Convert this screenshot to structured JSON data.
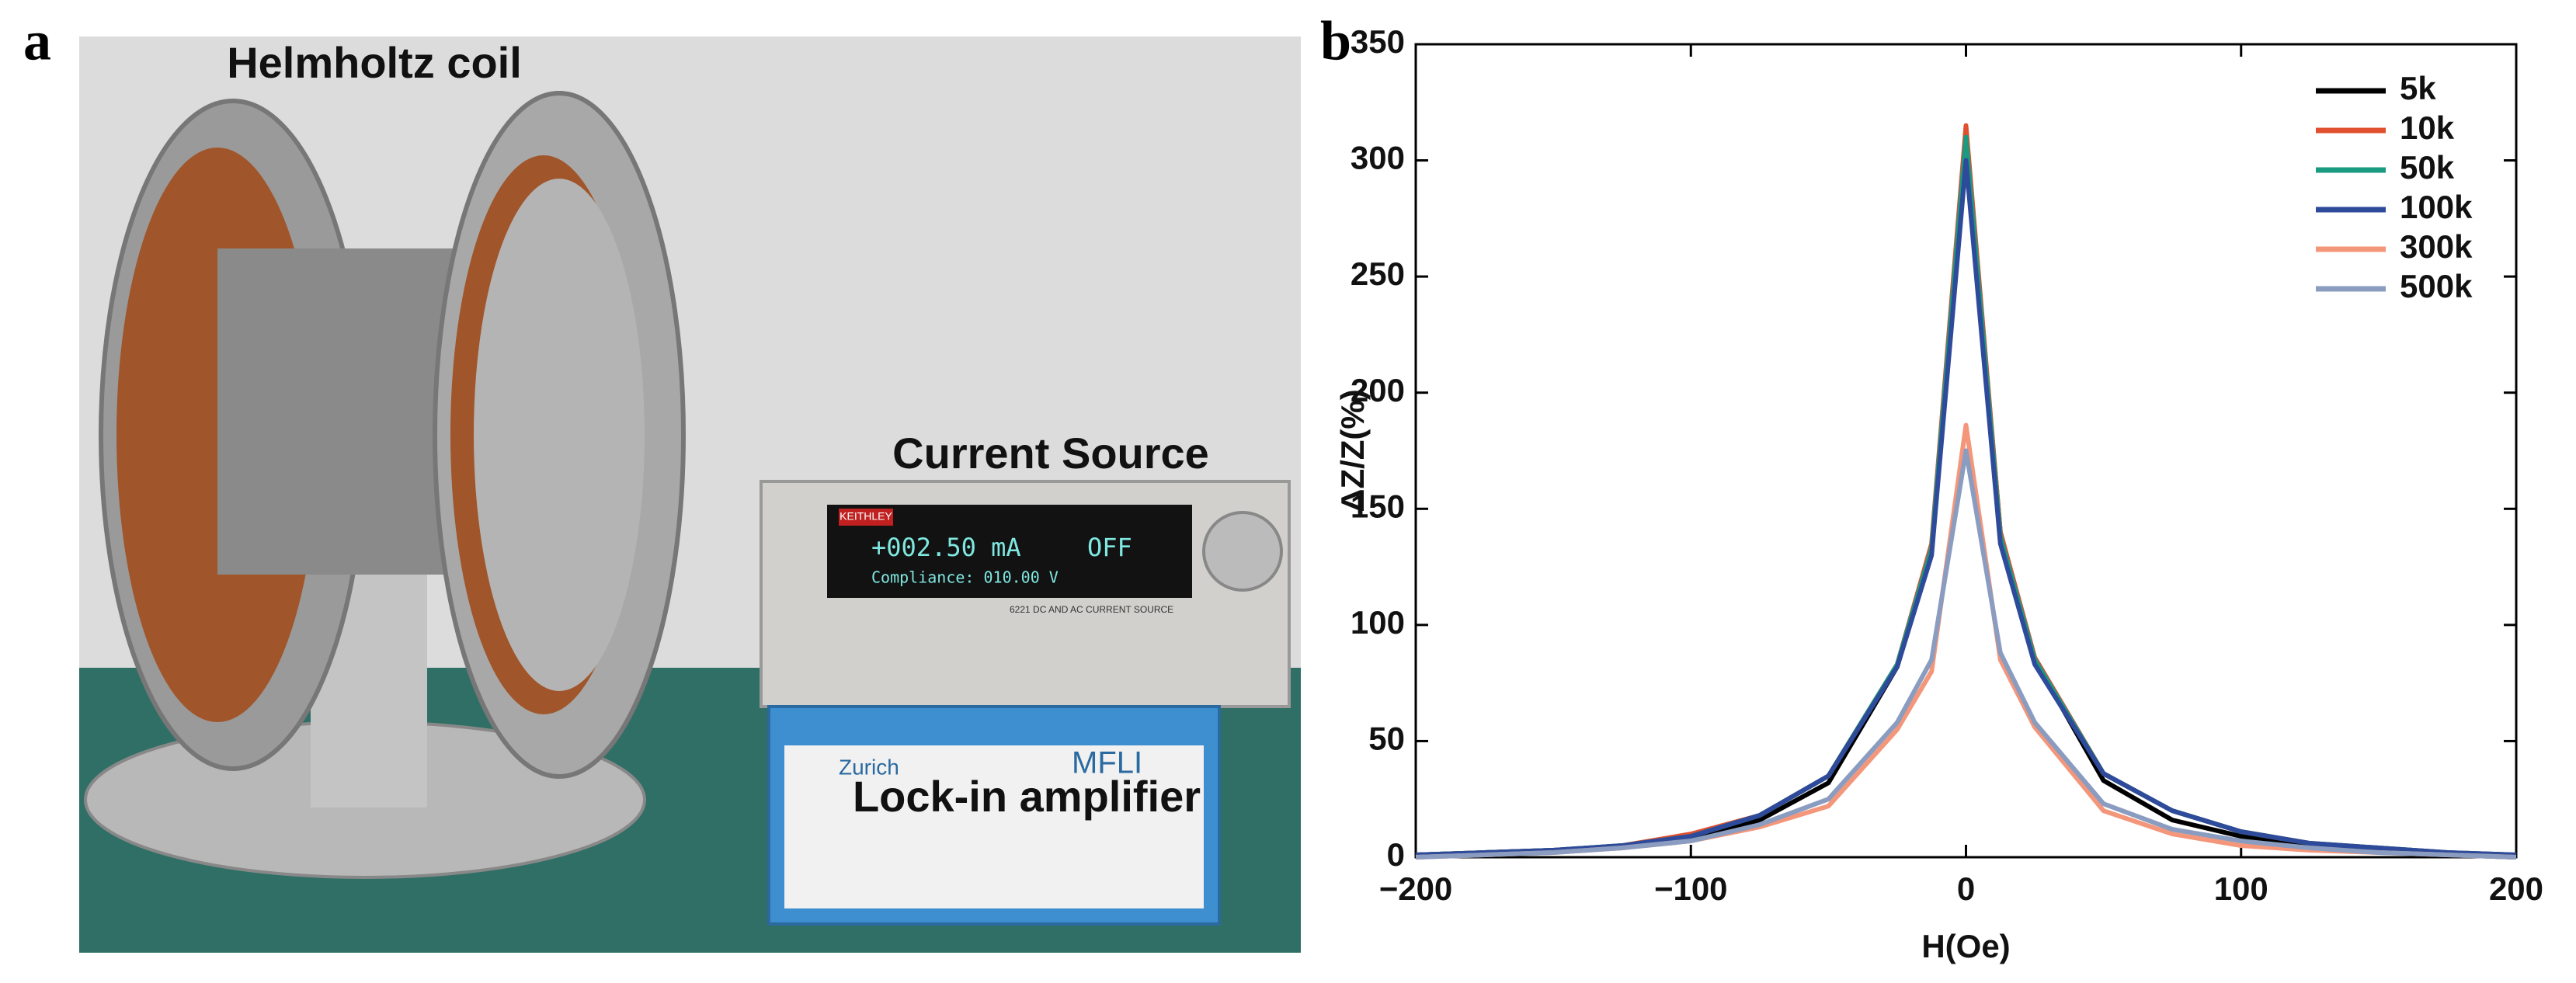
{
  "panels": {
    "a": "a",
    "b": "b"
  },
  "photo": {
    "labels": [
      "Helmholtz coil",
      "Current Source",
      "Lock-in amplifier"
    ],
    "device_texts": [
      "KEITHLEY",
      "+002.50 mA",
      "OFF",
      "Compliance: 010.00 V",
      "6221 DC AND AC CURRENT SOURCE",
      "MFLI",
      "Zurich"
    ]
  },
  "chart_data": {
    "type": "line",
    "xlabel": "H(Oe)",
    "ylabel": "ΔZ/Z(%)",
    "x": [
      -200,
      -175,
      -150,
      -125,
      -100,
      -75,
      -50,
      -25,
      -12.5,
      0,
      12.5,
      25,
      50,
      75,
      100,
      125,
      150,
      175,
      200
    ],
    "series": [
      {
        "name": "5k",
        "color": "#000000",
        "values": [
          1,
          2,
          3,
          4,
          8,
          16,
          32,
          82,
          132,
          311,
          140,
          85,
          33,
          16,
          9,
          5,
          3,
          1,
          0
        ]
      },
      {
        "name": "10k",
        "color": "#e0502f",
        "values": [
          1,
          2,
          3,
          5,
          10,
          18,
          35,
          83,
          135,
          315,
          140,
          86,
          36,
          20,
          11,
          6,
          4,
          2,
          1
        ]
      },
      {
        "name": "50k",
        "color": "#1a9a80",
        "values": [
          1,
          2,
          3,
          5,
          9,
          18,
          35,
          83,
          133,
          310,
          138,
          85,
          36,
          20,
          11,
          6,
          4,
          2,
          1
        ]
      },
      {
        "name": "100k",
        "color": "#2e4a9a",
        "values": [
          1,
          2,
          3,
          5,
          9,
          18,
          35,
          82,
          130,
          300,
          135,
          83,
          36,
          20,
          11,
          6,
          4,
          2,
          1
        ]
      },
      {
        "name": "300k",
        "color": "#f4967a",
        "values": [
          0,
          1,
          2,
          4,
          7,
          13,
          22,
          55,
          80,
          186,
          85,
          56,
          20,
          10,
          5,
          3,
          2,
          1,
          0
        ]
      },
      {
        "name": "500k",
        "color": "#8a9cc0",
        "values": [
          0,
          1,
          2,
          4,
          7,
          14,
          25,
          58,
          85,
          175,
          88,
          58,
          23,
          12,
          7,
          4,
          2,
          1,
          0
        ]
      }
    ],
    "xlim": [
      -200,
      200
    ],
    "xticks": [
      {
        "value": -200,
        "label": "−200"
      },
      {
        "value": -100,
        "label": "−100"
      },
      0,
      100,
      200
    ],
    "ylim": [
      0,
      350
    ],
    "yticks": [
      0,
      50,
      100,
      150,
      200,
      250,
      300,
      350
    ],
    "legend": "upper right",
    "grid": false
  }
}
